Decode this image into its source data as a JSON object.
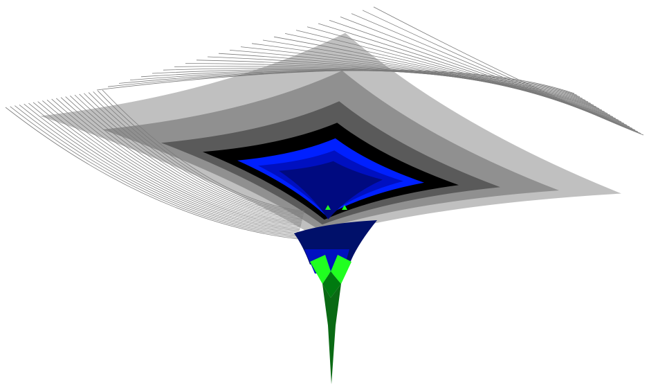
{
  "figure": {
    "kind": "3d-surface-render",
    "description_visible_text": "",
    "shape": "funnel-well",
    "colors": {
      "background": "#ffffff",
      "rim_light": "#ffffff",
      "band_light_gray": "#c0c0c0",
      "band_mid_gray": "#909090",
      "band_dark_gray": "#5a5a5a",
      "band_black": "#000000",
      "inner_blue_bright": "#0020ff",
      "inner_blue_mid": "#0010c0",
      "inner_blue_dark": "#000a80",
      "navy": "#00106a",
      "throat_bright_green": "#20ff20",
      "throat_dark_green": "#007a10",
      "stem_green": "#0a6a14",
      "edge_stroke": "#000000"
    }
  }
}
